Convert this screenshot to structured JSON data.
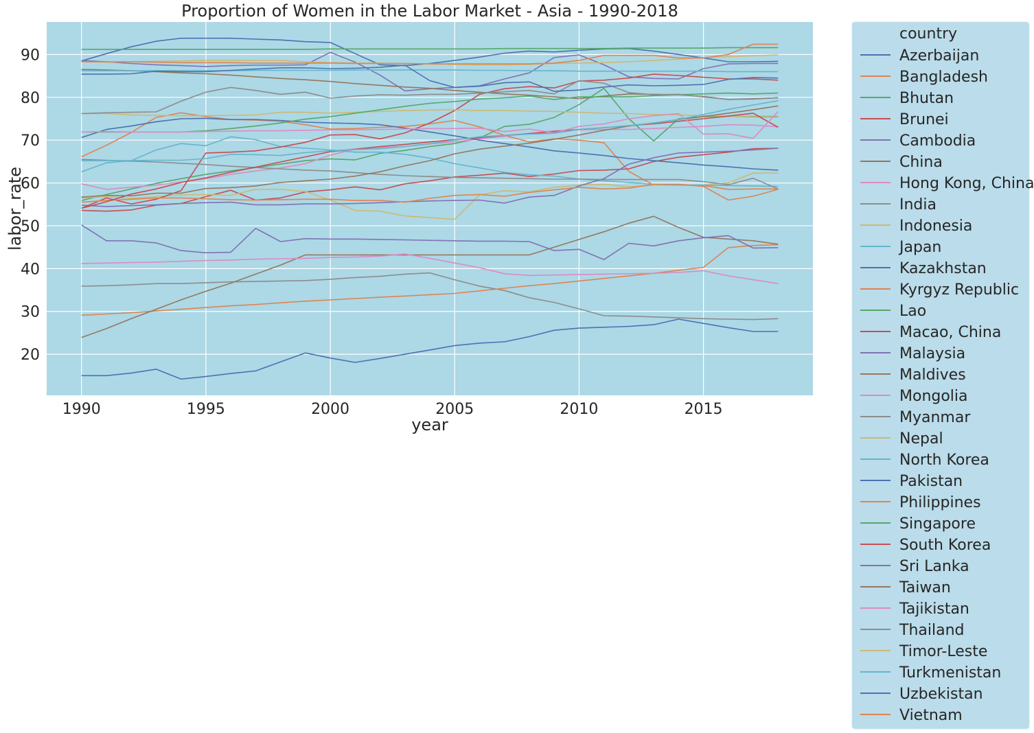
{
  "chart_data": {
    "type": "line",
    "title": "Proportion of Women in the Labor Market - Asia - 1990-2018",
    "xlabel": "year",
    "ylabel": "labor_rate",
    "xlim": [
      1988.6,
      2019.4
    ],
    "ylim": [
      10.4,
      97.6
    ],
    "xticks": [
      1990,
      1995,
      2000,
      2005,
      2010,
      2015
    ],
    "yticks": [
      20,
      30,
      40,
      50,
      60,
      70,
      80,
      90
    ],
    "grid": true,
    "background": "#add8e6",
    "legend": {
      "title": "country",
      "placement": "outside-right",
      "background": "#bbdcea"
    },
    "x": [
      1990,
      1991,
      1992,
      1993,
      1994,
      1995,
      1996,
      1997,
      1998,
      1999,
      2000,
      2001,
      2002,
      2003,
      2004,
      2005,
      2006,
      2007,
      2008,
      2009,
      2010,
      2011,
      2012,
      2013,
      2014,
      2015,
      2016,
      2017,
      2018
    ],
    "series": [
      {
        "name": "Azerbaijan",
        "color": "#4c72b0",
        "values": [
          88.5,
          90.2,
          91.8,
          93.1,
          93.8,
          93.8,
          93.8,
          93.6,
          93.4,
          93.0,
          92.8,
          90.2,
          87.6,
          87.4,
          87.9,
          88.6,
          89.4,
          90.3,
          90.8,
          90.6,
          91.0,
          91.3,
          91.4,
          90.8,
          90.0,
          89.2,
          88.3,
          88.3,
          88.4
        ]
      },
      {
        "name": "Bangladesh",
        "color": "#dd8452",
        "values": [
          66.1,
          68.8,
          71.8,
          75.3,
          76.4,
          75.5,
          74.8,
          74.7,
          74.4,
          73.6,
          72.6,
          72.7,
          73.0,
          73.2,
          73.8,
          74.6,
          73.1,
          71.1,
          69.6,
          70.3,
          70.0,
          69.4,
          62.7,
          59.5,
          59.5,
          59.4,
          58.5,
          58.6,
          58.6
        ]
      },
      {
        "name": "Bhutan",
        "color": "#55a868",
        "values": [
          55.9,
          57.3,
          58.6,
          59.9,
          61.0,
          62.0,
          62.8,
          63.6,
          64.4,
          65.2,
          65.6,
          65.4,
          66.9,
          67.6,
          68.5,
          69.2,
          70.5,
          73.2,
          73.7,
          75.3,
          78.3,
          82.1,
          75.0,
          69.8,
          75.0,
          75.5,
          75.6,
          75.5,
          75.5
        ]
      },
      {
        "name": "Brunei",
        "color": "#c44e52",
        "values": [
          53.6,
          53.4,
          53.7,
          54.8,
          55.2,
          56.8,
          58.3,
          56.0,
          56.5,
          57.9,
          58.4,
          59.1,
          58.4,
          59.8,
          60.5,
          61.4,
          61.8,
          62.3,
          61.5,
          62.1,
          62.9,
          63.0,
          63.3,
          65.0,
          66.0,
          66.6,
          67.2,
          68.0,
          68.1
        ]
      },
      {
        "name": "Cambodia",
        "color": "#8172b3",
        "values": [
          88.6,
          88.3,
          87.9,
          87.6,
          87.4,
          87.2,
          87.4,
          87.5,
          87.5,
          87.6,
          90.5,
          88.2,
          85.2,
          81.5,
          82.0,
          82.3,
          82.7,
          84.3,
          85.7,
          89.3,
          89.9,
          87.6,
          84.8,
          84.4,
          84.3,
          86.7,
          87.8,
          87.9,
          87.9
        ]
      },
      {
        "name": "China",
        "color": "#937860",
        "values": [
          86.5,
          86.4,
          86.2,
          86.0,
          85.7,
          85.5,
          85.2,
          84.8,
          84.4,
          84.1,
          83.7,
          83.2,
          82.8,
          82.4,
          82.1,
          81.6,
          81.2,
          80.8,
          80.5,
          80.1,
          79.7,
          80.3,
          80.8,
          80.7,
          80.6,
          80.2,
          79.5,
          79.6,
          79.9
        ]
      },
      {
        "name": "Hong Kong, China",
        "color": "#da8bc3",
        "values": [
          59.8,
          58.5,
          59.0,
          59.5,
          60.2,
          61.0,
          62.0,
          62.8,
          63.5,
          64.5,
          66.5,
          67.9,
          68.3,
          68.5,
          69.1,
          69.6,
          70.3,
          70.9,
          71.6,
          72.2,
          72.4,
          72.5,
          72.5,
          72.7,
          73.0,
          73.2,
          73.6,
          73.5,
          73.1
        ]
      },
      {
        "name": "India",
        "color": "#8c8c8c",
        "values": [
          35.9,
          36.0,
          36.2,
          36.5,
          36.5,
          36.7,
          36.9,
          37.0,
          37.1,
          37.2,
          37.5,
          37.9,
          38.2,
          38.7,
          39.0,
          37.4,
          35.9,
          34.9,
          33.2,
          32.1,
          30.6,
          29.0,
          28.9,
          28.7,
          28.5,
          28.3,
          28.2,
          28.1,
          28.3
        ]
      },
      {
        "name": "Indonesia",
        "color": "#ccb974",
        "values": [
          56.5,
          56.8,
          56.4,
          56.8,
          57.2,
          57.3,
          57.1,
          58.5,
          58.5,
          58.0,
          56.0,
          53.6,
          53.4,
          52.3,
          51.9,
          51.5,
          57.2,
          58.2,
          57.9,
          59.0,
          59.5,
          59.7,
          59.1,
          59.5,
          59.5,
          59.5,
          60.0,
          62.3,
          62.3
        ]
      },
      {
        "name": "Japan",
        "color": "#64b5cd",
        "values": [
          62.6,
          64.7,
          65.2,
          67.7,
          69.2,
          68.7,
          70.8,
          70.1,
          68.5,
          68.1,
          67.7,
          67.2,
          67.2,
          66.7,
          65.8,
          64.5,
          63.5,
          62.5,
          61.9,
          61.6,
          60.9,
          60.5,
          60.1,
          59.7,
          59.5,
          59.5,
          59.4,
          59.3,
          59.2
        ]
      },
      {
        "name": "Kazakhstan",
        "color": "#4c72b0",
        "values": [
          70.6,
          72.5,
          73.3,
          74.3,
          75.0,
          75.1,
          74.8,
          74.8,
          74.6,
          74.2,
          74.0,
          73.9,
          73.6,
          72.8,
          71.9,
          71.0,
          70.0,
          69.2,
          68.4,
          67.5,
          67.0,
          66.4,
          65.7,
          65.2,
          64.7,
          64.2,
          63.8,
          63.3,
          63.0
        ]
      },
      {
        "name": "Kyrgyz Republic",
        "color": "#dd8452",
        "values": [
          29.1,
          29.4,
          29.7,
          30.1,
          30.5,
          30.9,
          31.3,
          31.6,
          32.0,
          32.4,
          32.7,
          33.0,
          33.3,
          33.6,
          33.9,
          34.2,
          34.8,
          35.4,
          36.0,
          36.5,
          37.1,
          37.7,
          38.3,
          38.9,
          39.6,
          40.3,
          44.9,
          45.4,
          45.6
        ]
      },
      {
        "name": "Lao",
        "color": "#55a868",
        "values": [
          91.2,
          91.2,
          91.2,
          91.2,
          91.2,
          91.2,
          91.2,
          91.2,
          91.2,
          91.2,
          91.3,
          91.3,
          91.3,
          91.3,
          91.3,
          91.3,
          91.3,
          91.4,
          91.4,
          91.4,
          91.4,
          91.4,
          91.5,
          91.5,
          91.5,
          91.5,
          91.6,
          91.6,
          91.6
        ]
      },
      {
        "name": "Macao, China",
        "color": "#c44e52",
        "values": [
          54.1,
          56.5,
          55.1,
          56.2,
          58.2,
          67.0,
          67.2,
          67.5,
          68.4,
          69.5,
          71.2,
          71.3,
          70.3,
          71.7,
          74.0,
          76.9,
          80.7,
          82.0,
          82.5,
          82.2,
          83.8,
          84.0,
          84.5,
          85.4,
          85.1,
          84.7,
          84.3,
          84.3,
          84.0
        ]
      },
      {
        "name": "Malaysia",
        "color": "#8172b3",
        "values": [
          54.8,
          54.5,
          54.7,
          54.9,
          55.2,
          55.4,
          55.5,
          54.9,
          54.9,
          55.1,
          55.1,
          55.2,
          55.4,
          55.6,
          55.8,
          55.9,
          56.0,
          55.3,
          56.7,
          57.1,
          59.3,
          61.0,
          64.4,
          65.9,
          67.0,
          67.2,
          67.4,
          67.7,
          68.1
        ]
      },
      {
        "name": "Maldives",
        "color": "#937860",
        "values": [
          23.9,
          26.0,
          28.3,
          30.5,
          32.7,
          34.7,
          36.6,
          38.7,
          40.8,
          43.2,
          43.2,
          43.2,
          43.2,
          43.2,
          43.2,
          43.2,
          43.2,
          43.2,
          43.2,
          45.0,
          46.8,
          48.6,
          50.6,
          52.2,
          49.6,
          47.3,
          46.9,
          46.5,
          45.7
        ]
      },
      {
        "name": "Mongolia",
        "color": "#da8bc3",
        "values": [
          41.2,
          41.3,
          41.4,
          41.5,
          41.7,
          41.9,
          42.0,
          42.2,
          42.3,
          42.4,
          42.6,
          42.7,
          42.9,
          43.4,
          42.4,
          41.3,
          40.2,
          38.8,
          38.4,
          38.5,
          38.6,
          38.7,
          38.8,
          38.9,
          39.1,
          39.5,
          38.3,
          37.4,
          36.5
        ]
      },
      {
        "name": "Myanmar",
        "color": "#8c8c8c",
        "values": [
          65.5,
          65.3,
          65.1,
          64.9,
          64.6,
          64.3,
          63.9,
          63.6,
          63.3,
          63.0,
          62.8,
          62.4,
          62.0,
          61.7,
          61.5,
          61.3,
          61.2,
          61.1,
          61.0,
          60.9,
          60.9,
          60.8,
          60.8,
          60.8,
          60.8,
          60.3,
          59.6,
          61.1,
          58.6
        ]
      },
      {
        "name": "Nepal",
        "color": "#ccb974",
        "values": [
          76.2,
          76.2,
          75.9,
          75.8,
          75.7,
          75.7,
          75.8,
          75.9,
          76.5,
          76.5,
          76.3,
          76.5,
          76.7,
          76.9,
          77.0,
          77.1,
          76.9,
          76.9,
          76.8,
          76.7,
          76.5,
          76.3,
          76.2,
          76.0,
          75.9,
          75.7,
          75.6,
          75.6,
          75.6
        ]
      },
      {
        "name": "North Korea",
        "color": "#64b5cd",
        "values": [
          86.2,
          86.2,
          86.2,
          86.2,
          86.2,
          86.2,
          86.2,
          86.3,
          86.3,
          86.3,
          86.3,
          86.4,
          86.4,
          86.4,
          86.4,
          86.4,
          86.3,
          86.3,
          86.2,
          86.2,
          86.1,
          86.1,
          86.1,
          86.1,
          86.1,
          86.1,
          86.0,
          86.0,
          86.0
        ]
      },
      {
        "name": "Pakistan",
        "color": "#4c72b0",
        "values": [
          15.0,
          15.0,
          15.6,
          16.5,
          14.2,
          14.8,
          15.5,
          16.1,
          18.2,
          20.3,
          19.1,
          18.1,
          19.0,
          20.0,
          21.0,
          22.0,
          22.6,
          22.9,
          24.1,
          25.6,
          26.1,
          26.3,
          26.5,
          26.9,
          28.2,
          27.2,
          26.2,
          25.3,
          25.3
        ]
      },
      {
        "name": "Philippines",
        "color": "#dd8452",
        "values": [
          55.5,
          55.9,
          56.2,
          56.5,
          56.5,
          56.3,
          56.1,
          56.0,
          56.1,
          56.2,
          56.2,
          55.9,
          55.9,
          55.5,
          56.4,
          57.1,
          57.3,
          56.9,
          57.8,
          58.4,
          59.0,
          58.6,
          58.8,
          59.7,
          59.7,
          59.2,
          56.0,
          56.9,
          58.5
        ]
      },
      {
        "name": "Singapore",
        "color": "#55a868",
        "values": [
          71.9,
          71.9,
          71.9,
          71.9,
          71.9,
          72.2,
          72.7,
          73.3,
          74.0,
          74.9,
          75.5,
          76.3,
          77.1,
          77.9,
          78.6,
          79.0,
          79.6,
          79.9,
          80.3,
          79.5,
          80.1,
          80.1,
          80.1,
          80.4,
          80.6,
          80.8,
          81.0,
          80.8,
          81.0
        ]
      },
      {
        "name": "South Korea",
        "color": "#c44e52",
        "values": [
          54.1,
          55.6,
          57.4,
          58.6,
          60.1,
          61.2,
          62.5,
          63.7,
          64.9,
          66.1,
          67.3,
          67.9,
          68.5,
          69.0,
          69.6,
          70.1,
          70.6,
          71.1,
          71.5,
          72.0,
          72.5,
          72.9,
          73.4,
          73.8,
          74.4,
          75.0,
          75.6,
          76.3,
          73.0
        ]
      },
      {
        "name": "Sri Lanka",
        "color": "#8172b3",
        "values": [
          50.2,
          46.5,
          46.5,
          46.0,
          44.2,
          43.7,
          43.8,
          49.4,
          46.3,
          47.0,
          46.9,
          46.9,
          46.8,
          46.7,
          46.6,
          46.5,
          46.4,
          46.4,
          46.3,
          44.2,
          44.5,
          42.1,
          45.9,
          45.3,
          46.5,
          47.2,
          47.7,
          44.8,
          44.9
        ]
      },
      {
        "name": "Taiwan",
        "color": "#937860",
        "values": [
          56.7,
          57.1,
          57.0,
          57.6,
          57.6,
          58.7,
          58.9,
          59.3,
          60.1,
          60.5,
          60.9,
          61.6,
          62.6,
          64.0,
          65.2,
          66.8,
          67.9,
          68.6,
          69.3,
          70.2,
          71.2,
          72.3,
          73.3,
          74.0,
          74.8,
          75.5,
          76.3,
          77.1,
          78.0
        ]
      },
      {
        "name": "Tajikistan",
        "color": "#da8bc3",
        "values": [
          71.9,
          72.0,
          71.9,
          71.9,
          71.9,
          72.0,
          72.1,
          72.2,
          72.2,
          72.3,
          72.4,
          72.4,
          72.5,
          72.6,
          72.7,
          72.7,
          72.8,
          72.0,
          72.6,
          71.7,
          73.2,
          73.8,
          75.0,
          75.7,
          76.2,
          71.4,
          71.5,
          70.4,
          76.7
        ]
      },
      {
        "name": "Thailand",
        "color": "#8c8c8c",
        "values": [
          76.2,
          76.4,
          76.5,
          76.6,
          79.1,
          81.2,
          82.3,
          81.6,
          80.7,
          81.2,
          79.8,
          80.3,
          80.6,
          80.5,
          80.7,
          80.7,
          81.0,
          81.3,
          81.6,
          80.8,
          83.9,
          83.3,
          81.1,
          80.6,
          80.7,
          80.1,
          79.5,
          79.7,
          79.9
        ]
      },
      {
        "name": "Timor-Leste",
        "color": "#ccb974",
        "values": [
          88.3,
          88.2,
          88.3,
          88.4,
          88.5,
          88.6,
          88.6,
          88.6,
          88.6,
          88.3,
          88.1,
          88.0,
          88.0,
          87.9,
          87.8,
          87.7,
          87.6,
          87.6,
          87.7,
          87.9,
          88.0,
          88.1,
          88.3,
          88.6,
          88.9,
          89.3,
          89.5,
          89.7,
          89.9
        ]
      },
      {
        "name": "Turkmenistan",
        "color": "#64b5cd",
        "values": [
          65.2,
          65.2,
          65.2,
          65.3,
          65.3,
          65.7,
          66.7,
          66.6,
          66.4,
          67.1,
          67.5,
          67.8,
          68.0,
          68.5,
          69.2,
          70.0,
          70.8,
          71.1,
          71.4,
          71.6,
          72.5,
          72.9,
          73.4,
          74.0,
          74.8,
          76.0,
          77.2,
          78.2,
          79.2
        ]
      },
      {
        "name": "Uzbekistan",
        "color": "#4c72b0",
        "values": [
          85.4,
          85.4,
          85.5,
          86.1,
          86.0,
          86.0,
          86.3,
          86.6,
          86.9,
          86.9,
          86.7,
          86.8,
          87.0,
          87.5,
          83.9,
          82.3,
          82.6,
          83.4,
          83.6,
          81.4,
          81.7,
          82.4,
          82.9,
          82.7,
          82.8,
          83.0,
          84.2,
          84.6,
          84.5
        ]
      },
      {
        "name": "Vietnam",
        "color": "#dd8452",
        "values": [
          88.3,
          88.3,
          88.3,
          88.2,
          88.1,
          88.1,
          88.1,
          88.0,
          88.0,
          88.0,
          88.0,
          87.9,
          87.9,
          87.9,
          87.8,
          87.8,
          87.8,
          87.8,
          87.8,
          88.0,
          88.6,
          89.8,
          89.8,
          89.8,
          89.2,
          89.2,
          90.0,
          92.4,
          92.4
        ]
      }
    ]
  }
}
